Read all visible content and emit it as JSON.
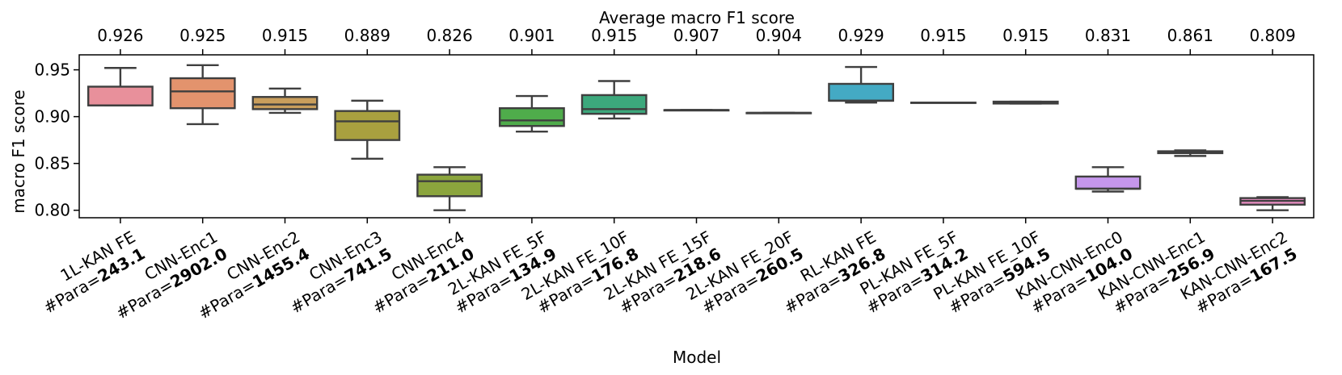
{
  "chart_data": {
    "type": "boxplot",
    "top_title": "Average macro F1 score",
    "xlabel": "Model",
    "ylabel": "macro F1 score",
    "ylim": [
      0.792,
      0.966
    ],
    "yticks": [
      0.8,
      0.85,
      0.9,
      0.95
    ],
    "ytick_labels": [
      "0.80",
      "0.85",
      "0.90",
      "0.95"
    ],
    "para_prefix": "#Para=",
    "models": [
      {
        "name": "1L-KAN FE",
        "para": "243.1",
        "avg": "0.926",
        "color": "#e8909b",
        "box": {
          "whislo": 0.912,
          "q1": 0.912,
          "med": 0.912,
          "q3": 0.932,
          "whishi": 0.952
        }
      },
      {
        "name": "CNN-Enc1",
        "para": "2902.0",
        "avg": "0.925",
        "color": "#e3936d",
        "box": {
          "whislo": 0.892,
          "q1": 0.909,
          "med": 0.927,
          "q3": 0.941,
          "whishi": 0.955
        }
      },
      {
        "name": "CNN-Enc2",
        "para": "1455.4",
        "avg": "0.915",
        "color": "#c99e5c",
        "box": {
          "whislo": 0.904,
          "q1": 0.908,
          "med": 0.913,
          "q3": 0.921,
          "whishi": 0.93
        }
      },
      {
        "name": "CNN-Enc3",
        "para": "741.5",
        "avg": "0.889",
        "color": "#a9a03f",
        "box": {
          "whislo": 0.855,
          "q1": 0.875,
          "med": 0.895,
          "q3": 0.906,
          "whishi": 0.917
        }
      },
      {
        "name": "CNN-Enc4",
        "para": "211.0",
        "avg": "0.826",
        "color": "#8ba53d",
        "box": {
          "whislo": 0.8,
          "q1": 0.815,
          "med": 0.831,
          "q3": 0.838,
          "whishi": 0.846
        }
      },
      {
        "name": "2L-KAN FE_5F",
        "para": "134.9",
        "avg": "0.901",
        "color": "#4fac4b",
        "box": {
          "whislo": 0.884,
          "q1": 0.89,
          "med": 0.896,
          "q3": 0.909,
          "whishi": 0.922
        }
      },
      {
        "name": "2L-KAN FE_10F",
        "para": "176.8",
        "avg": "0.915",
        "color": "#3ca87c",
        "box": {
          "whislo": 0.898,
          "q1": 0.903,
          "med": 0.908,
          "q3": 0.923,
          "whishi": 0.938
        }
      },
      {
        "name": "2L-KAN FE_15F",
        "para": "218.6",
        "avg": "0.907",
        "color": "#3ba89a",
        "box": {
          "whislo": 0.907,
          "q1": 0.907,
          "med": 0.907,
          "q3": 0.907,
          "whishi": 0.907
        }
      },
      {
        "name": "2L-KAN FE_20F",
        "para": "260.5",
        "avg": "0.904",
        "color": "#3ba8ab",
        "box": {
          "whislo": 0.904,
          "q1": 0.904,
          "med": 0.904,
          "q3": 0.904,
          "whishi": 0.904
        }
      },
      {
        "name": "RL-KAN FE",
        "para": "326.8",
        "avg": "0.929",
        "color": "#44aac4",
        "box": {
          "whislo": 0.915,
          "q1": 0.917,
          "med": 0.917,
          "q3": 0.935,
          "whishi": 0.953
        }
      },
      {
        "name": "PL-KAN FE_5F",
        "para": "314.2",
        "avg": "0.915",
        "color": "#5aa8e0",
        "box": {
          "whislo": 0.915,
          "q1": 0.915,
          "med": 0.915,
          "q3": 0.915,
          "whishi": 0.915
        }
      },
      {
        "name": "PL-KAN FE_10F",
        "para": "594.5",
        "avg": "0.915",
        "color": "#8fa6ea",
        "box": {
          "whislo": 0.914,
          "q1": 0.914,
          "med": 0.915,
          "q3": 0.916,
          "whishi": 0.916
        }
      },
      {
        "name": "KAN-CNN-Enc0",
        "para": "104.0",
        "avg": "0.831",
        "color": "#c596ec",
        "box": {
          "whislo": 0.82,
          "q1": 0.823,
          "med": 0.823,
          "q3": 0.836,
          "whishi": 0.846
        }
      },
      {
        "name": "KAN-CNN-Enc1",
        "para": "256.9",
        "avg": "0.861",
        "color": "#e58fe0",
        "box": {
          "whislo": 0.858,
          "q1": 0.861,
          "med": 0.862,
          "q3": 0.863,
          "whishi": 0.864
        }
      },
      {
        "name": "KAN-CNN-Enc2",
        "para": "167.5",
        "avg": "0.809",
        "color": "#ea8fc4",
        "box": {
          "whislo": 0.8,
          "q1": 0.806,
          "med": 0.81,
          "q3": 0.813,
          "whishi": 0.814
        }
      }
    ]
  }
}
